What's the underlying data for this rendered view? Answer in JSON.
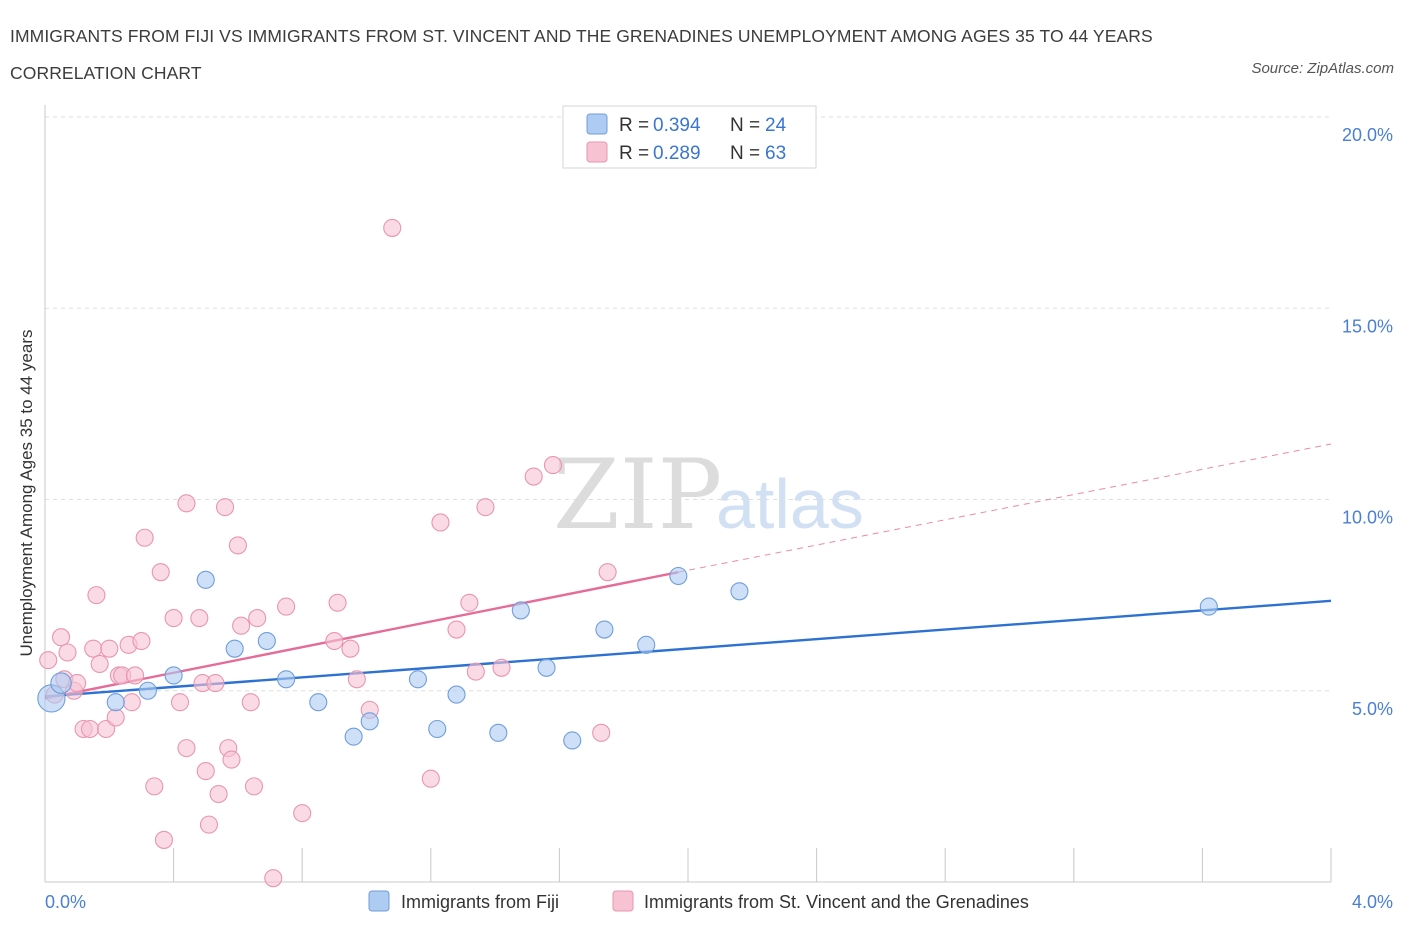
{
  "title": "IMMIGRANTS FROM FIJI VS IMMIGRANTS FROM ST. VINCENT AND THE GRENADINES UNEMPLOYMENT AMONG AGES 35 TO 44 YEARS CORRELATION CHART",
  "source": "Source: ZipAtlas.com",
  "watermark": {
    "zip": "ZIP",
    "atlas": "atlas"
  },
  "legend": {
    "r_label": "R =",
    "n_label": "N =",
    "rows": [
      {
        "r": "0.394",
        "n": "24",
        "color": "#aecbf2",
        "stroke": "#7aa6e0"
      },
      {
        "r": "0.289",
        "n": "63",
        "color": "#f7c3d3",
        "stroke": "#ee9bb5"
      }
    ]
  },
  "chart_data": {
    "type": "scatter",
    "title": "IMMIGRANTS FROM FIJI VS IMMIGRANTS FROM ST. VINCENT AND THE GRENADINES UNEMPLOYMENT AMONG AGES 35 TO 44 YEARS CORRELATION CHART",
    "xlabel": "",
    "ylabel": "Unemployment Among Ages 35 to 44 years",
    "xlim": [
      0,
      4
    ],
    "ylim": [
      0,
      20
    ],
    "x_tick_labels": [
      "0.0%",
      "4.0%"
    ],
    "y_ticks": [
      5,
      10,
      15,
      20
    ],
    "y_tick_labels": [
      "5.0%",
      "10.0%",
      "15.0%",
      "20.0%"
    ],
    "grid": true,
    "legend_position": "top-center",
    "series": [
      {
        "name": "Immigrants from Fiji",
        "color": "#aecbf2",
        "stroke": "#6f9edb",
        "trend_color": "#2d72d2",
        "trend": {
          "x": [
            0.0,
            4.0
          ],
          "y": [
            4.85,
            7.35
          ]
        },
        "points": [
          [
            0.02,
            4.8
          ],
          [
            0.05,
            5.2
          ],
          [
            0.22,
            4.7
          ],
          [
            0.32,
            5.0
          ],
          [
            0.4,
            5.4
          ],
          [
            0.5,
            7.9
          ],
          [
            0.59,
            6.1
          ],
          [
            0.69,
            6.3
          ],
          [
            0.75,
            5.3
          ],
          [
            0.85,
            4.7
          ],
          [
            0.96,
            3.8
          ],
          [
            1.01,
            4.2
          ],
          [
            1.16,
            5.3
          ],
          [
            1.22,
            4.0
          ],
          [
            1.28,
            4.9
          ],
          [
            1.41,
            3.9
          ],
          [
            1.48,
            7.1
          ],
          [
            1.56,
            5.6
          ],
          [
            1.64,
            3.7
          ],
          [
            1.74,
            6.6
          ],
          [
            1.87,
            6.2
          ],
          [
            1.97,
            8.0
          ],
          [
            2.16,
            7.6
          ],
          [
            3.62,
            7.2
          ]
        ],
        "sizes": [
          1.6,
          1.2,
          1,
          1,
          1,
          1,
          1,
          1,
          1,
          1,
          1,
          1,
          1,
          1,
          1,
          1,
          1,
          1,
          1,
          1,
          1,
          1,
          1,
          1
        ]
      },
      {
        "name": "Immigrants from St. Vincent and the Grenadines",
        "color": "#f7c3d3",
        "stroke": "#e995b0",
        "trend_color": "#e66b97",
        "trend": {
          "x": [
            0.0,
            1.97
          ],
          "y": [
            4.8,
            8.1
          ]
        },
        "trend_extended": {
          "x": [
            1.97,
            4.0
          ],
          "y": [
            8.1,
            11.45
          ]
        },
        "points": [
          [
            0.01,
            5.8
          ],
          [
            0.03,
            4.9
          ],
          [
            0.05,
            6.4
          ],
          [
            0.07,
            6.0
          ],
          [
            0.06,
            5.3
          ],
          [
            0.09,
            5.0
          ],
          [
            0.1,
            5.2
          ],
          [
            0.12,
            4.0
          ],
          [
            0.14,
            4.0
          ],
          [
            0.15,
            6.1
          ],
          [
            0.16,
            7.5
          ],
          [
            0.17,
            5.7
          ],
          [
            0.19,
            4.0
          ],
          [
            0.2,
            6.1
          ],
          [
            0.22,
            4.3
          ],
          [
            0.23,
            5.4
          ],
          [
            0.24,
            5.4
          ],
          [
            0.26,
            6.2
          ],
          [
            0.27,
            4.7
          ],
          [
            0.28,
            5.4
          ],
          [
            0.3,
            6.3
          ],
          [
            0.31,
            9.0
          ],
          [
            0.34,
            2.5
          ],
          [
            0.36,
            8.1
          ],
          [
            0.37,
            1.1
          ],
          [
            0.4,
            6.9
          ],
          [
            0.42,
            4.7
          ],
          [
            0.44,
            3.5
          ],
          [
            0.44,
            9.9
          ],
          [
            0.49,
            5.2
          ],
          [
            0.5,
            2.9
          ],
          [
            0.51,
            1.5
          ],
          [
            0.53,
            5.2
          ],
          [
            0.54,
            2.3
          ],
          [
            0.56,
            9.8
          ],
          [
            0.57,
            3.5
          ],
          [
            0.58,
            3.2
          ],
          [
            0.6,
            8.8
          ],
          [
            0.61,
            6.7
          ],
          [
            0.64,
            4.7
          ],
          [
            0.65,
            2.5
          ],
          [
            0.71,
            0.1
          ],
          [
            0.75,
            7.2
          ],
          [
            0.8,
            1.8
          ],
          [
            0.9,
            6.3
          ],
          [
            0.91,
            7.3
          ],
          [
            0.95,
            6.1
          ],
          [
            0.97,
            5.3
          ],
          [
            1.01,
            4.5
          ],
          [
            1.08,
            17.1
          ],
          [
            1.2,
            2.7
          ],
          [
            1.23,
            9.4
          ],
          [
            1.28,
            6.6
          ],
          [
            1.32,
            7.3
          ],
          [
            1.34,
            5.5
          ],
          [
            1.37,
            9.8
          ],
          [
            1.42,
            5.6
          ],
          [
            1.52,
            10.6
          ],
          [
            1.58,
            10.9
          ],
          [
            1.73,
            3.9
          ],
          [
            1.75,
            8.1
          ],
          [
            0.66,
            6.9
          ],
          [
            0.48,
            6.9
          ]
        ]
      }
    ]
  }
}
